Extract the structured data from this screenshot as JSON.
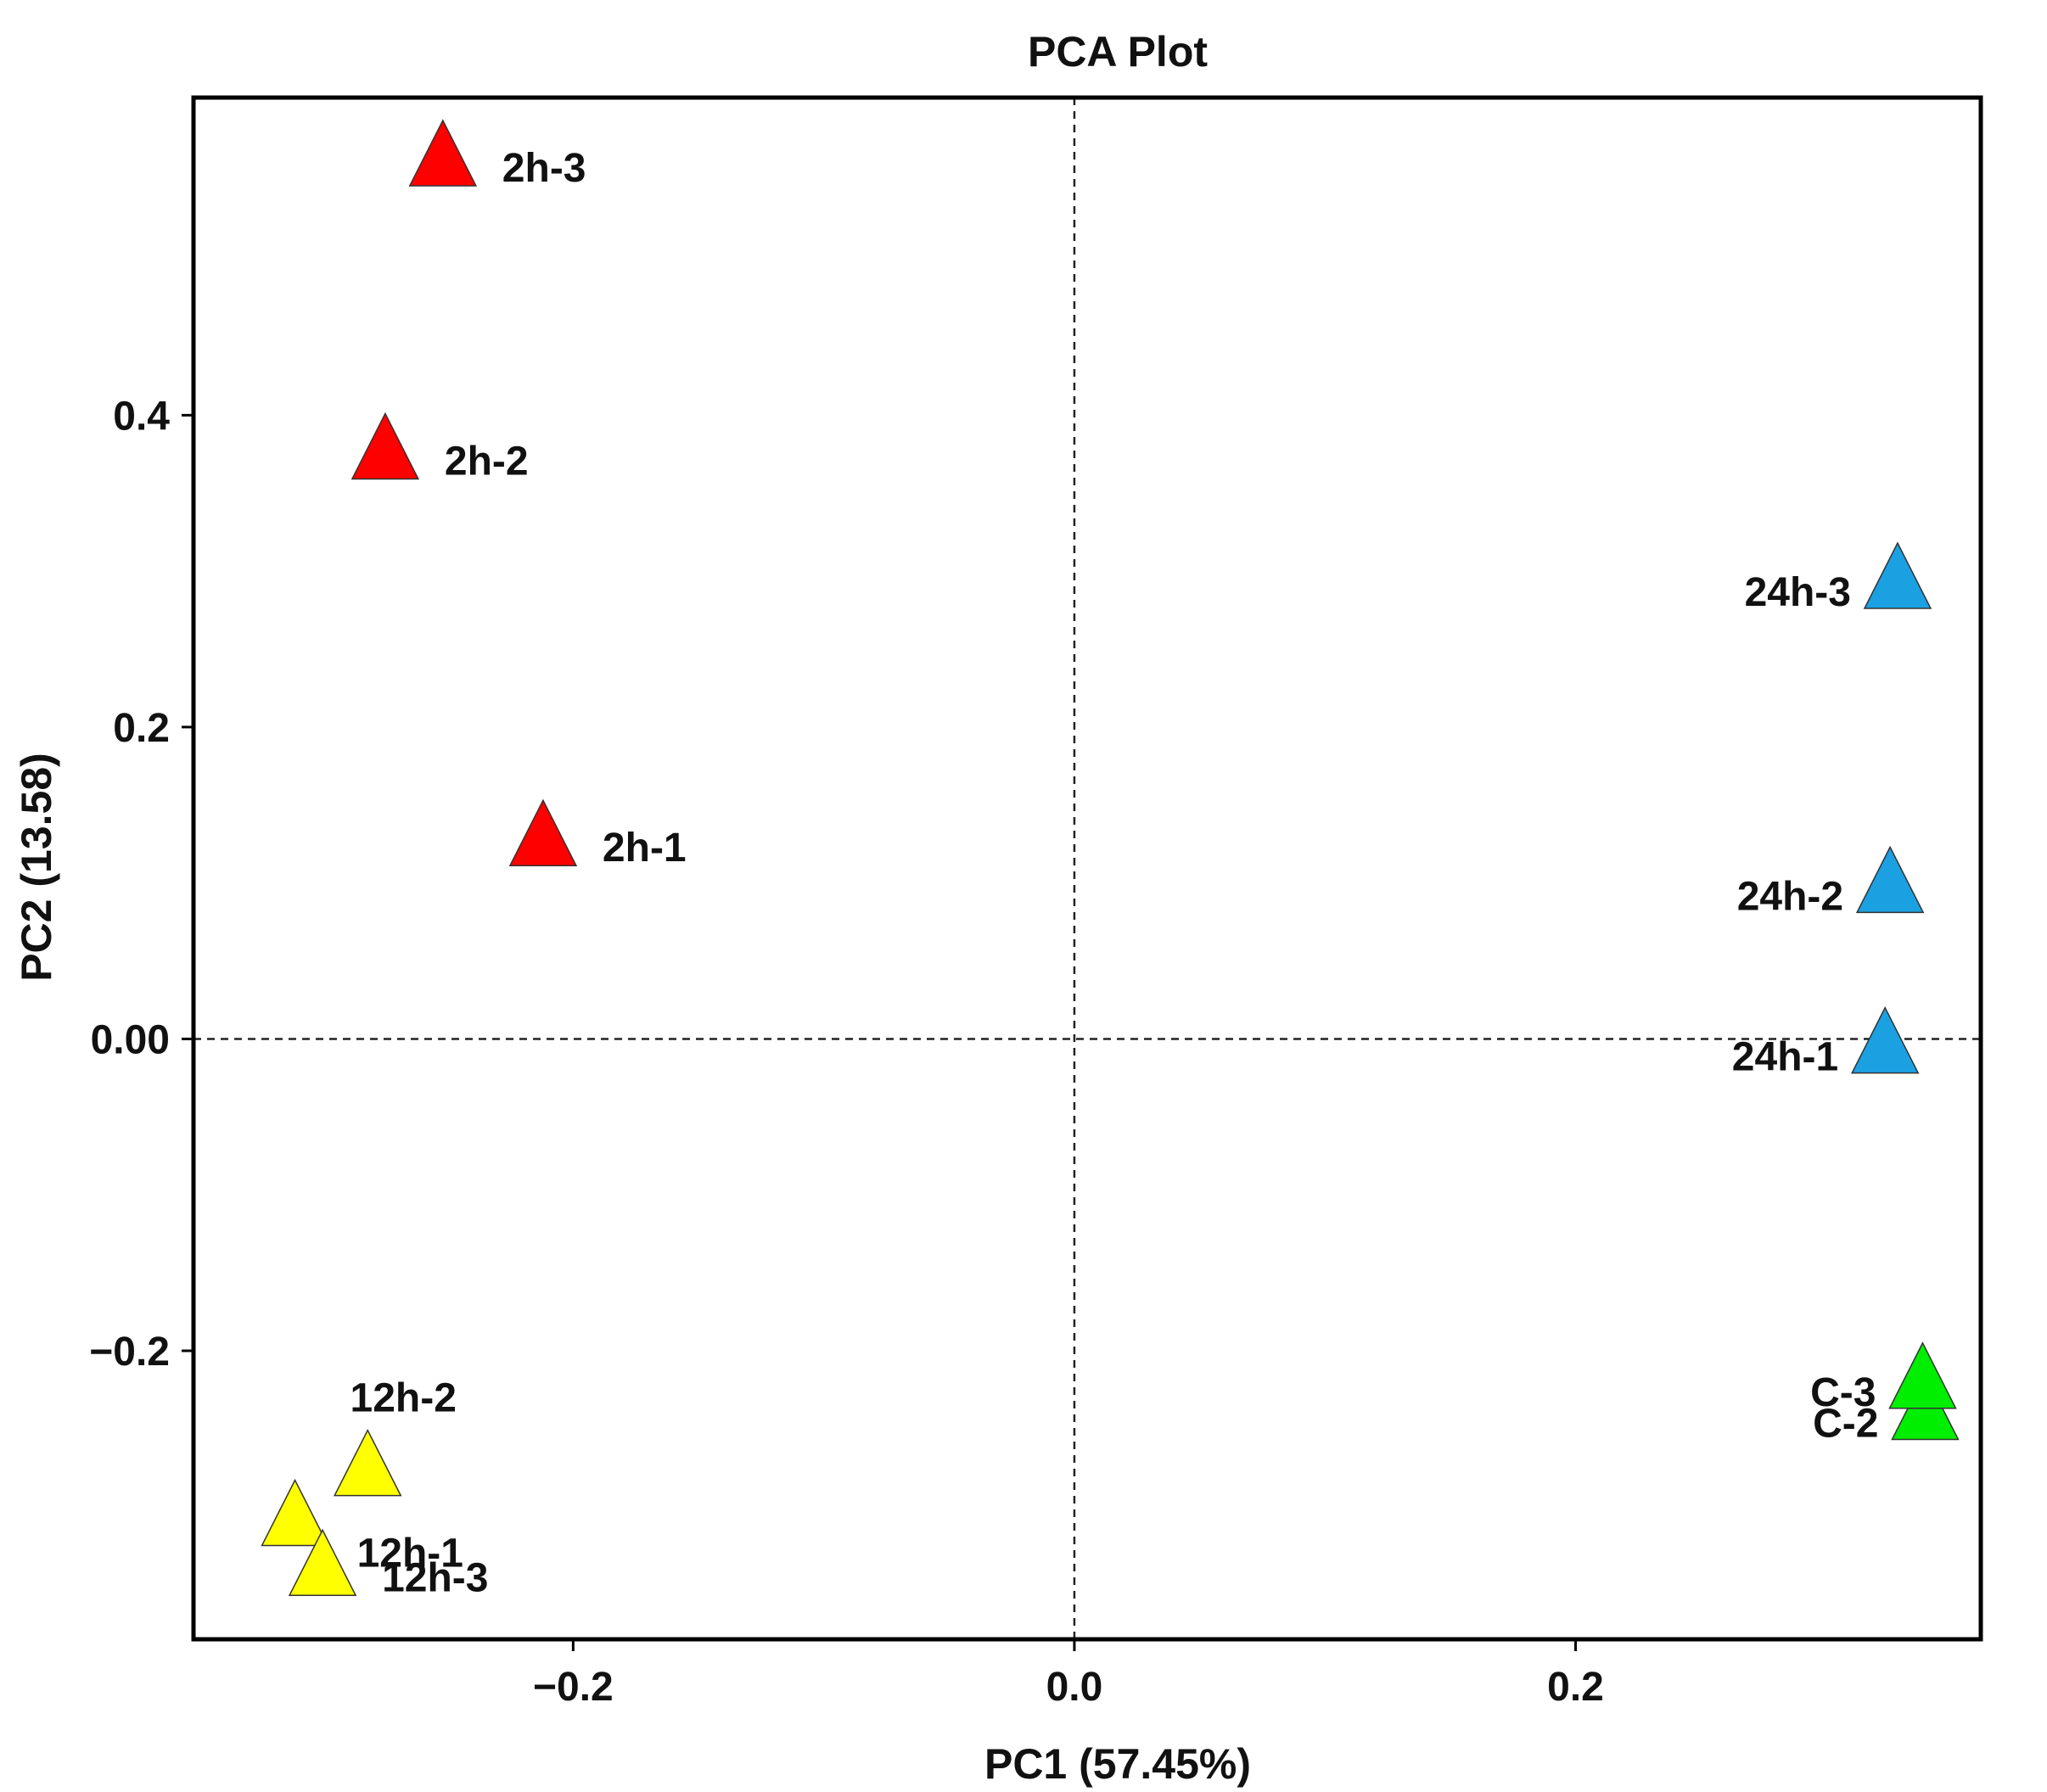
{
  "chart_data": {
    "type": "scatter",
    "title": "PCA Plot",
    "xlabel": "PC1 (57.45%)",
    "ylabel": "PC2 (13.58)",
    "xlim": [
      -0.3515,
      0.3617
    ],
    "ylim": [
      -0.385,
      0.6037
    ],
    "x_ticks": [
      {
        "value": -0.2,
        "label": "−0.2"
      },
      {
        "value": 0.0,
        "label": "0.0"
      },
      {
        "value": 0.2,
        "label": "0.2"
      }
    ],
    "y_ticks": [
      {
        "value": -0.2,
        "label": "−0.2"
      },
      {
        "value": 0.0,
        "label": "0.00"
      },
      {
        "value": 0.2,
        "label": "0.2"
      },
      {
        "value": 0.4,
        "label": "0.4"
      }
    ],
    "reference_lines": {
      "x": 0,
      "y": 0,
      "style": "dashed"
    },
    "grid": false,
    "marker": "triangle",
    "series": [
      {
        "name": "2h",
        "color": "#ff0000",
        "points": [
          {
            "label": "2h-1",
            "x": -0.212,
            "y": 0.128,
            "label_side": "right"
          },
          {
            "label": "2h-2",
            "x": -0.275,
            "y": 0.376,
            "label_side": "right"
          },
          {
            "label": "2h-3",
            "x": -0.252,
            "y": 0.564,
            "label_side": "right"
          }
        ]
      },
      {
        "name": "12h",
        "color": "#ffff00",
        "points": [
          {
            "label": "12h-1",
            "x": -0.311,
            "y": -0.308,
            "label_side": "below-right"
          },
          {
            "label": "12h-2",
            "x": -0.282,
            "y": -0.276,
            "label_side": "above"
          },
          {
            "label": "12h-3",
            "x": -0.3,
            "y": -0.34,
            "label_side": "right"
          }
        ]
      },
      {
        "name": "24h",
        "color": "#1ba1e2",
        "points": [
          {
            "label": "24h-1",
            "x": 0.3235,
            "y": -0.005,
            "label_side": "left"
          },
          {
            "label": "24h-2",
            "x": 0.3255,
            "y": 0.098,
            "label_side": "left"
          },
          {
            "label": "24h-3",
            "x": 0.3285,
            "y": 0.293,
            "label_side": "left"
          }
        ]
      },
      {
        "name": "C",
        "color": "#00ee00",
        "points": [
          {
            "label": "C-2",
            "x": 0.3395,
            "y": -0.24,
            "label_side": "left"
          },
          {
            "label": "C-3",
            "x": 0.3385,
            "y": -0.22,
            "label_side": "left"
          }
        ]
      }
    ]
  }
}
